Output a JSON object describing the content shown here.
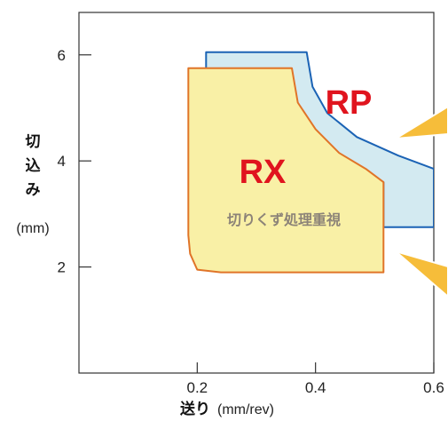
{
  "chart_data": {
    "type": "area",
    "x_ticks": [
      "0.2",
      "0.4",
      "0.6"
    ],
    "y_ticks": [
      "2",
      "4",
      "6"
    ],
    "xlim": [
      0,
      0.6
    ],
    "ylim": [
      0,
      6.8
    ],
    "xlabel": {
      "main": "送り",
      "unit": "(mm/rev)"
    },
    "ylabel": {
      "chars": [
        "切",
        "込",
        "み"
      ],
      "unit": "(mm)"
    },
    "regions": [
      {
        "name": "RP",
        "fill": "#d3eaf1",
        "stroke": "#1b63b5",
        "outline": [
          [
            0.215,
            6.05
          ],
          [
            0.385,
            6.05
          ],
          [
            0.395,
            5.4
          ],
          [
            0.42,
            4.9
          ],
          [
            0.47,
            4.45
          ],
          [
            0.54,
            4.1
          ],
          [
            0.6,
            3.85
          ],
          [
            0.6,
            2.75
          ],
          [
            0.515,
            2.75
          ],
          [
            0.515,
            3.6
          ],
          [
            0.46,
            3.95
          ],
          [
            0.215,
            3.95
          ]
        ]
      },
      {
        "name": "RX",
        "note": "切りくず処理重視",
        "fill": "#f9f0a6",
        "stroke": "#e07428",
        "outline": [
          [
            0.185,
            5.75
          ],
          [
            0.36,
            5.75
          ],
          [
            0.37,
            5.1
          ],
          [
            0.4,
            4.6
          ],
          [
            0.44,
            4.15
          ],
          [
            0.485,
            3.85
          ],
          [
            0.515,
            3.6
          ],
          [
            0.515,
            1.9
          ],
          [
            0.24,
            1.9
          ],
          [
            0.2,
            1.95
          ],
          [
            0.188,
            2.25
          ],
          [
            0.185,
            2.6
          ]
        ]
      }
    ],
    "accent_color": "#f6bd3a"
  }
}
